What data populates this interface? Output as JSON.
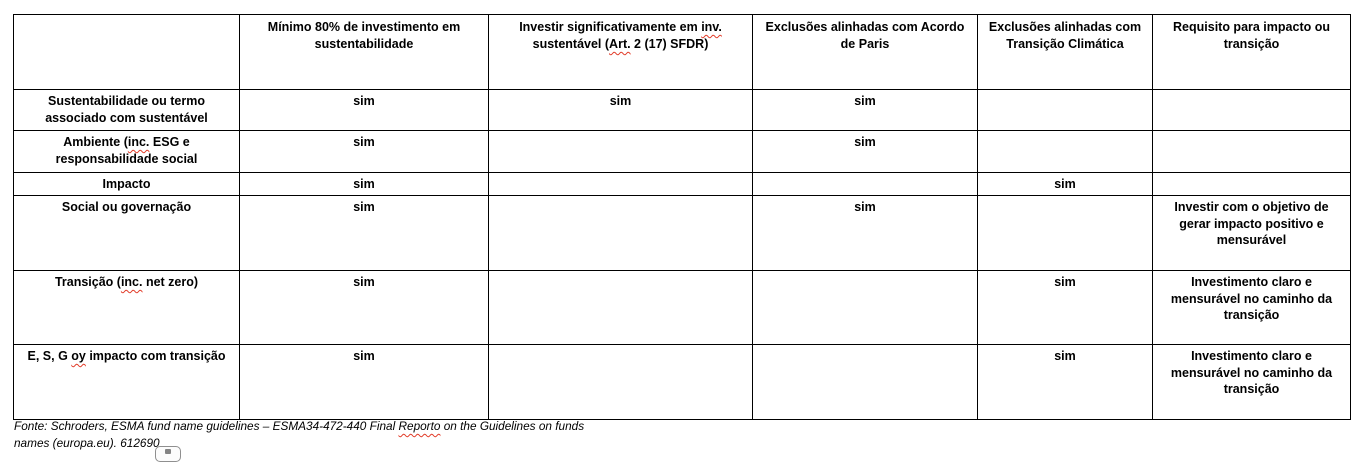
{
  "colors": {
    "table_border": "#000000",
    "text": "#000000",
    "spellcheck_squiggle": "#e13a27"
  },
  "yes_label": "sim",
  "table": {
    "header": [
      {
        "name": "row-label",
        "parts": [
          {
            "t": ""
          }
        ]
      },
      {
        "name": "min-80-sustainability",
        "parts": [
          {
            "t": "Mínimo 80% de investimento em sustentabilidade"
          }
        ]
      },
      {
        "name": "significant-sustainable-investment",
        "parts": [
          {
            "t": "Investir significativamente em "
          },
          {
            "t": "inv.",
            "sq": true
          },
          {
            "t": " sustentável ("
          },
          {
            "t": "Art.",
            "sq": true
          },
          {
            "t": " 2 (17) SFDR)"
          }
        ]
      },
      {
        "name": "paris-aligned-exclusions",
        "parts": [
          {
            "t": "Exclusões alinhadas com Acordo de Paris"
          }
        ]
      },
      {
        "name": "climate-transition-exclusions",
        "parts": [
          {
            "t": "Exclusões alinhadas com Transição Climática"
          }
        ]
      },
      {
        "name": "impact-transition-requirement",
        "parts": [
          {
            "t": "Requisito para impacto ou transição"
          }
        ]
      }
    ],
    "rows": [
      {
        "cells": [
          [
            {
              "t": "Sustentabilidade ou termo associado com sustentável"
            }
          ],
          [
            {
              "t": "sim"
            }
          ],
          [
            {
              "t": "sim"
            }
          ],
          [
            {
              "t": "sim"
            }
          ],
          [],
          []
        ]
      },
      {
        "cells": [
          [
            {
              "t": "Ambiente ("
            },
            {
              "t": "inc.",
              "sq": true
            },
            {
              "t": " ESG e responsabilidade social"
            }
          ],
          [
            {
              "t": "sim"
            }
          ],
          [],
          [
            {
              "t": "sim"
            }
          ],
          [],
          []
        ]
      },
      {
        "cells": [
          [
            {
              "t": "Impacto"
            }
          ],
          [
            {
              "t": "sim"
            }
          ],
          [],
          [],
          [
            {
              "t": "sim"
            }
          ],
          []
        ]
      },
      {
        "cells": [
          [
            {
              "t": "Social ou governação"
            }
          ],
          [
            {
              "t": "sim"
            }
          ],
          [],
          [
            {
              "t": "sim"
            }
          ],
          [],
          [
            {
              "t": "Investir com o objetivo de gerar impacto positivo e mensurável"
            }
          ]
        ]
      },
      {
        "cells": [
          [
            {
              "t": "Transição ("
            },
            {
              "t": "inc.",
              "sq": true
            },
            {
              "t": " net zero)"
            }
          ],
          [
            {
              "t": "sim"
            }
          ],
          [],
          [],
          [
            {
              "t": "sim"
            }
          ],
          [
            {
              "t": "Investimento claro e mensurável no caminho da transição"
            }
          ]
        ]
      },
      {
        "cells": [
          [
            {
              "t": "E, S, G "
            },
            {
              "t": "oy",
              "sq": true
            },
            {
              "t": " impacto com transição"
            }
          ],
          [
            {
              "t": "sim"
            }
          ],
          [],
          [],
          [
            {
              "t": "sim"
            }
          ],
          [
            {
              "t": "Investimento claro e mensurável no caminho da transição"
            }
          ]
        ]
      }
    ]
  },
  "footer": {
    "parts": [
      {
        "t": "Fonte: Schroders, ESMA fund name guidelines – ESMA34-472-440 Final "
      },
      {
        "t": "Reporto",
        "sq": true
      },
      {
        "t": " on the Guidelines on funds"
      },
      {
        "br": true
      },
      {
        "t": "names (europa.eu). 612690"
      }
    ]
  }
}
